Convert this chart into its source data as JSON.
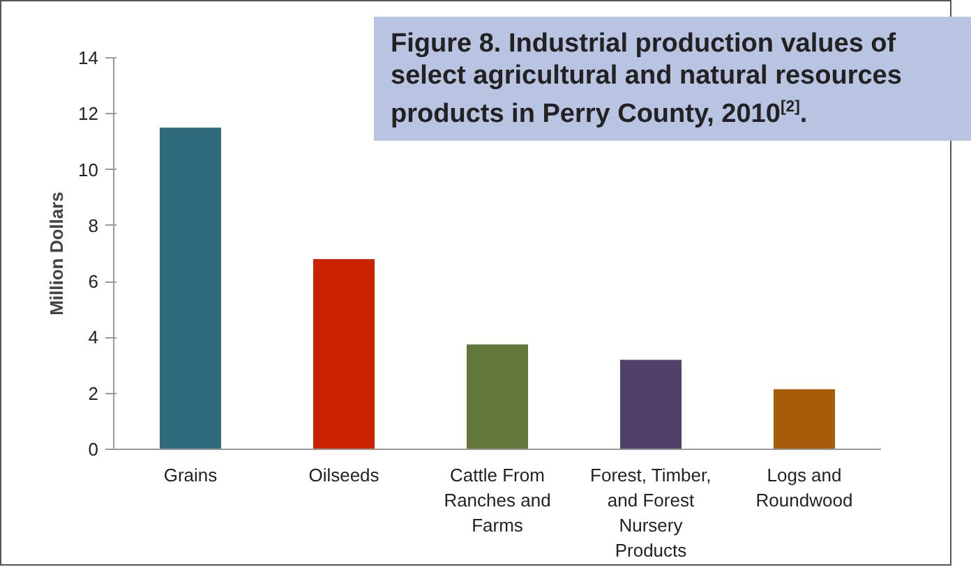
{
  "chart_data": {
    "type": "bar",
    "title": "Figure 8. Industrial production values of select agricultural and natural resources products in Perry County, 2010$^{[2]}$.",
    "ylabel": "Million Dollars",
    "categories": [
      "Grains",
      "Oilseeds",
      "Cattle From Ranches and Farms",
      "Forest, Timber, and Forest Nursery Products",
      "Logs and Roundwood"
    ],
    "values": [
      11.5,
      6.8,
      3.75,
      3.2,
      2.15
    ],
    "colors": [
      "#2e6b7c",
      "#cc2200",
      "#63773a",
      "#50406a",
      "#a85c0a"
    ],
    "ylim": [
      0,
      14
    ],
    "yticks": [
      0,
      2,
      4,
      6,
      8,
      10,
      12,
      14
    ],
    "grid": false
  }
}
